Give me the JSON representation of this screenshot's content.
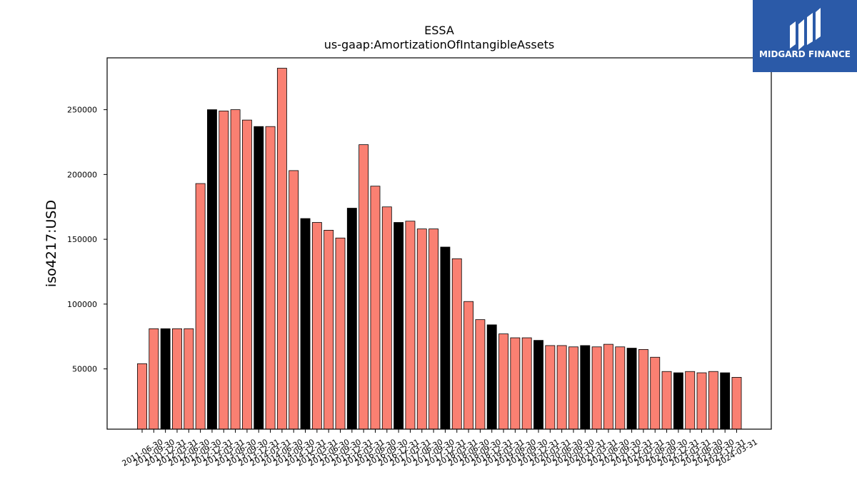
{
  "logo": {
    "text": "MIDGARD FINANCE",
    "background": "#2b5aa8",
    "mark": "midgard-logo-icon"
  },
  "chart_data": {
    "type": "bar",
    "title": "ESSA",
    "subtitle": "us-gaap:AmortizationOfIntangibleAssets",
    "xlabel": "",
    "ylabel": "iso4217:USD",
    "ylim": [
      3500,
      290000
    ],
    "yticks": [
      50000,
      100000,
      150000,
      200000,
      250000
    ],
    "grid": false,
    "legend": "none",
    "colors": {
      "default": "#fa8072",
      "highlight": "#000000",
      "edge": "#000000"
    },
    "categories": [
      "2011-06-30",
      "2011-09-30",
      "2011-12-31",
      "2012-03-31",
      "2012-06-30",
      "2012-09-30",
      "2012-12-31",
      "2013-03-31",
      "2013-06-30",
      "2013-09-30",
      "2013-12-31",
      "2014-03-31",
      "2014-06-30",
      "2014-09-30",
      "2014-12-31",
      "2015-03-31",
      "2015-06-30",
      "2015-09-30",
      "2015-12-31",
      "2016-03-31",
      "2016-06-30",
      "2016-09-30",
      "2016-12-31",
      "2017-03-31",
      "2017-06-30",
      "2017-09-30",
      "2017-12-31",
      "2018-03-31",
      "2018-06-30",
      "2018-09-30",
      "2018-12-31",
      "2019-03-31",
      "2019-06-30",
      "2019-09-30",
      "2019-12-31",
      "2020-03-31",
      "2020-06-30",
      "2020-09-30",
      "2020-12-31",
      "2021-03-31",
      "2021-06-30",
      "2021-09-30",
      "2021-12-31",
      "2022-03-31",
      "2022-06-30",
      "2022-09-30",
      "2022-12-31",
      "2023-03-31",
      "2023-06-30",
      "2023-09-30",
      "2023-12-31",
      "2024-03-31"
    ],
    "values": [
      54000,
      81000,
      81000,
      81000,
      81000,
      193000,
      250000,
      249000,
      250000,
      242000,
      237000,
      237000,
      282000,
      203000,
      166000,
      163000,
      157000,
      151000,
      174000,
      223000,
      191000,
      175000,
      163000,
      164000,
      158000,
      158000,
      144000,
      135000,
      102000,
      88000,
      84000,
      77000,
      74000,
      74000,
      72000,
      68000,
      68000,
      67000,
      68000,
      67000,
      69000,
      67000,
      66000,
      65000,
      59000,
      48000,
      47000,
      48000,
      47000,
      48000,
      47000,
      43500
    ],
    "highlighted": [
      false,
      false,
      true,
      false,
      false,
      false,
      true,
      false,
      false,
      false,
      true,
      false,
      false,
      false,
      true,
      false,
      false,
      false,
      true,
      false,
      false,
      false,
      true,
      false,
      false,
      false,
      true,
      false,
      false,
      false,
      true,
      false,
      false,
      false,
      true,
      false,
      false,
      false,
      true,
      false,
      false,
      false,
      true,
      false,
      false,
      false,
      true,
      false,
      false,
      false,
      true,
      false
    ]
  }
}
